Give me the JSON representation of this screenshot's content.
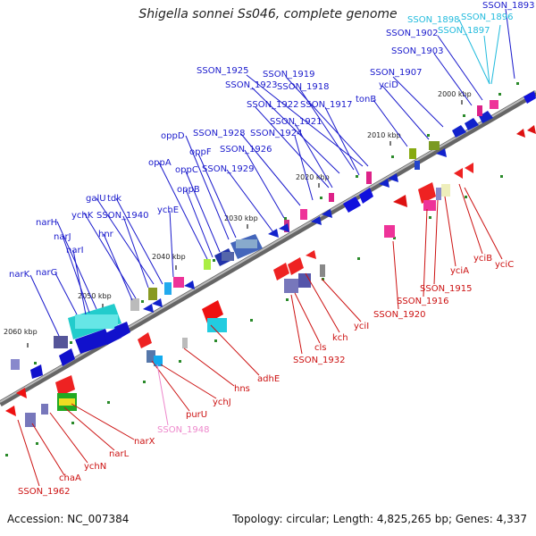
{
  "title": "Shigella sonnei Ss046, complete genome",
  "footer": {
    "accession": "Accession: NC_007384",
    "topology": "Topology: circular; Length: 4,825,265 bp; Genes: 4,337"
  },
  "colors": {
    "forward_label": "#1a1acc",
    "reverse_label": "#cc1111",
    "highlight_label": "#22bbdd",
    "pseudo_label": "#ee88cc",
    "backbone": "#888888"
  },
  "ticks": [
    "2000 kbp",
    "2010 kbp",
    "2020 kbp",
    "2030 kbp",
    "2040 kbp",
    "2050 kbp",
    "2060 kbp"
  ],
  "forward_labels": [
    "SSON_1893",
    "SSON_1898",
    "SSON_1896",
    "SSON_1897",
    "SSON_1902",
    "SSON_1903",
    "SSON_1907",
    "yciD",
    "tonB",
    "SSON_1925",
    "SSON_1919",
    "SSON_1923",
    "SSON_1918",
    "SSON_1922",
    "SSON_1917",
    "SSON_1921",
    "SSON_1928",
    "SSON_1924",
    "oppD",
    "oppF",
    "SSON_1926",
    "oppA",
    "oppC",
    "SSON_1929",
    "oppB",
    "galU",
    "tdk",
    "ychK",
    "SSON_1940",
    "ychE",
    "narH",
    "narJ",
    "hnr",
    "narI",
    "narK",
    "narG"
  ],
  "reverse_labels": [
    "yciB",
    "yciC",
    "yciA",
    "SSON_1915",
    "SSON_1916",
    "SSON_1920",
    "yciI",
    "kch",
    "cls",
    "SSON_1932",
    "adhE",
    "hns",
    "ychJ",
    "purU",
    "SSON_1948",
    "narX",
    "narL",
    "ychN",
    "chaA",
    "SSON_1962"
  ]
}
